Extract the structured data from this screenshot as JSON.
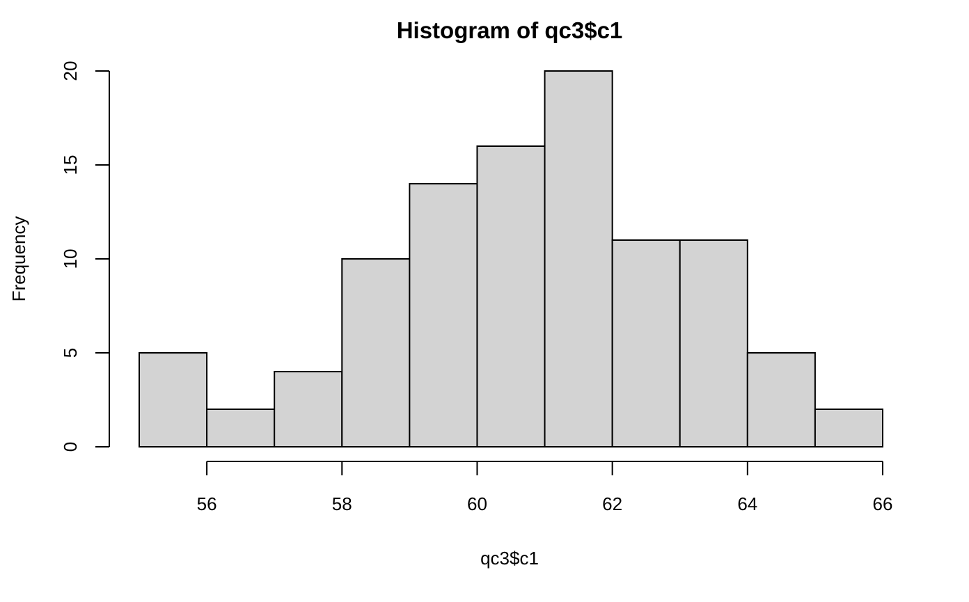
{
  "chart_data": {
    "type": "bar",
    "title": "Histogram of qc3$c1",
    "xlabel": "qc3$c1",
    "ylabel": "Frequency",
    "bins": [
      {
        "start": 55,
        "end": 56,
        "count": 5
      },
      {
        "start": 56,
        "end": 57,
        "count": 2
      },
      {
        "start": 57,
        "end": 58,
        "count": 4
      },
      {
        "start": 58,
        "end": 59,
        "count": 10
      },
      {
        "start": 59,
        "end": 60,
        "count": 14
      },
      {
        "start": 60,
        "end": 61,
        "count": 16
      },
      {
        "start": 61,
        "end": 62,
        "count": 20
      },
      {
        "start": 62,
        "end": 63,
        "count": 11
      },
      {
        "start": 63,
        "end": 64,
        "count": 11
      },
      {
        "start": 64,
        "end": 65,
        "count": 5
      },
      {
        "start": 65,
        "end": 66,
        "count": 2
      }
    ],
    "xticks": [
      "56",
      "58",
      "60",
      "62",
      "64",
      "66"
    ],
    "yticks": [
      "0",
      "5",
      "10",
      "15",
      "20"
    ],
    "xlim": [
      55,
      66
    ],
    "ylim": [
      0,
      20
    ],
    "grid": false,
    "bar_fill": "#d3d3d3",
    "bar_stroke": "#000000"
  }
}
